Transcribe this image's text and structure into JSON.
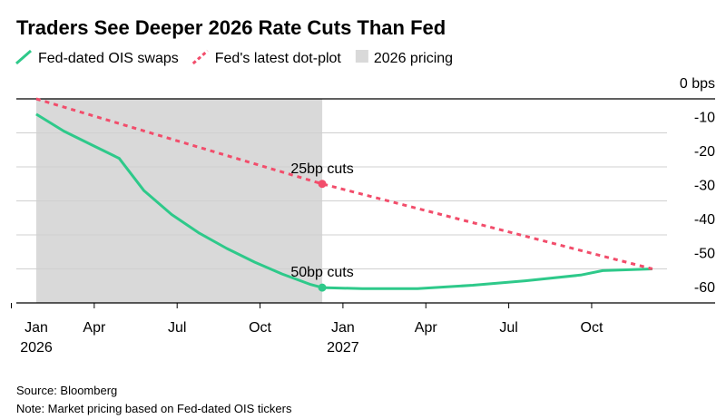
{
  "chart_data": {
    "type": "line",
    "title": "Traders See Deeper 2026 Rate Cuts Than Fed",
    "x": [
      0.9,
      1.9,
      2.9,
      3.9,
      4.8,
      5.8,
      6.8,
      7.8,
      8.8,
      9.8,
      10.8,
      11.25,
      12.7,
      14.7,
      16.7,
      18.6,
      20.6,
      21.4,
      23.2
    ],
    "series": [
      {
        "name": "Fed-dated OIS swaps",
        "color": "#2ec98a",
        "dashed": false,
        "x": [
          0.9,
          1.9,
          2.9,
          3.9,
          4.8,
          5.8,
          6.8,
          7.8,
          8.8,
          9.8,
          10.8,
          11.25,
          12.7,
          14.7,
          16.7,
          18.6,
          20.6,
          21.4,
          23.2
        ],
        "values": [
          -4.5,
          -9.5,
          -13.5,
          -17.5,
          -27,
          -34,
          -39.5,
          -44,
          -48,
          -51.5,
          -54.5,
          -55.5,
          -55.8,
          -55.8,
          -54.8,
          -53.5,
          -51.8,
          -50.5,
          -50
        ],
        "marker_index": 11
      },
      {
        "name": "Fed's latest dot-plot",
        "color": "#f24d6b",
        "dashed": true,
        "x": [
          0.9,
          11.25,
          23.2
        ],
        "values": [
          0,
          -25,
          -50
        ],
        "marker_index": 1
      }
    ],
    "shade": {
      "name": "2026 pricing",
      "color": "#d9d9d9",
      "range": [
        0.9,
        11.25
      ]
    },
    "annotations": [
      "50bp cuts",
      "25bp cuts"
    ],
    "xlim": [
      0,
      24
    ],
    "xticks": [
      {
        "value": 0,
        "label": "Jan"
      },
      {
        "value": 3,
        "label": "Apr"
      },
      {
        "value": 6,
        "label": "Jul"
      },
      {
        "value": 9,
        "label": "Oct"
      },
      {
        "value": 12,
        "label": "Jan"
      },
      {
        "value": 15,
        "label": "Apr"
      },
      {
        "value": 18,
        "label": "Jul"
      },
      {
        "value": 21,
        "label": "Oct"
      }
    ],
    "x_year_labels": [
      {
        "value": 0,
        "label": "2026"
      },
      {
        "value": 12,
        "label": "2027"
      }
    ],
    "ylim": [
      -60,
      0
    ],
    "yticks": [
      {
        "value": 0,
        "label": "0 bps"
      },
      -10,
      -20,
      -30,
      -40,
      -50,
      -60
    ],
    "grid": true,
    "source": "Source: Bloomberg",
    "note": "Note: Market pricing based on Fed-dated OIS tickers"
  }
}
